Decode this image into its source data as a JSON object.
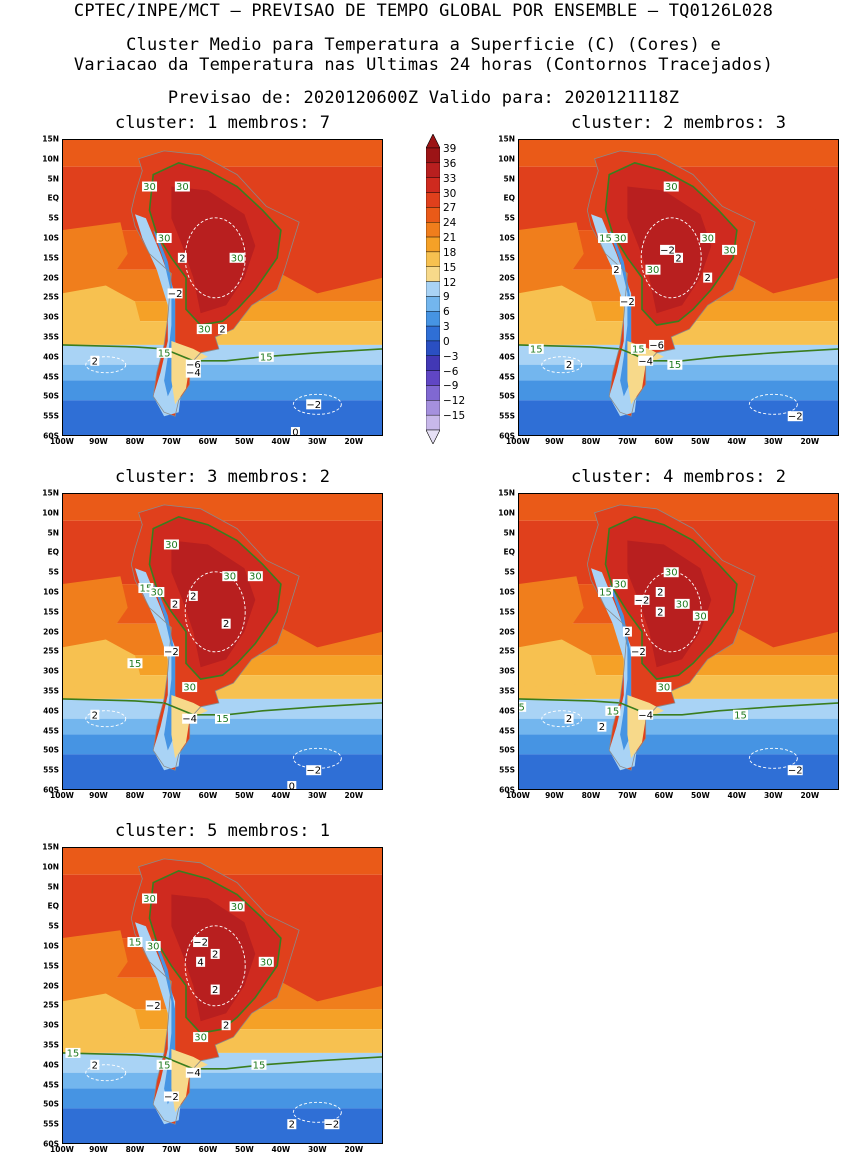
{
  "header": {
    "line1": "CPTEC/INPE/MCT – PREVISAO DE TEMPO GLOBAL POR ENSEMBLE – TQ0126L028",
    "line2": "Cluster Medio para Temperatura a Superficie (C) (Cores) e",
    "line3": "Variacao da Temperatura nas Ultimas 24 horas (Contornos Tracejados)",
    "line4": "Previsao de: 2020120600Z   Valido para: 2020121118Z"
  },
  "axes": {
    "lat_labels": [
      "15N",
      "10N",
      "5N",
      "EQ",
      "5S",
      "10S",
      "15S",
      "20S",
      "25S",
      "30S",
      "35S",
      "40S",
      "45S",
      "50S",
      "55S",
      "60S"
    ],
    "lon_labels": [
      "100W",
      "90W",
      "80W",
      "70W",
      "60W",
      "50W",
      "40W",
      "30W",
      "20W"
    ],
    "lat_range": [
      -60,
      15
    ],
    "lon_range": [
      -100,
      -12
    ]
  },
  "colorbar": {
    "levels": [
      "39",
      "36",
      "33",
      "30",
      "27",
      "24",
      "21",
      "18",
      "15",
      "12",
      "9",
      "6",
      "3",
      "0",
      "-3",
      "-6",
      "-9",
      "-12",
      "-15"
    ],
    "colors": [
      "#9c1416",
      "#b81f1f",
      "#cf2a1f",
      "#e0401c",
      "#ea5a18",
      "#f07e1c",
      "#f5a127",
      "#f7c150",
      "#f7d98a",
      "#a9d3f5",
      "#73b6ee",
      "#4694e3",
      "#2f6fd6",
      "#2a4fc2",
      "#4238b5",
      "#6046c4",
      "#8068d2",
      "#a590de",
      "#c8b8ea"
    ]
  },
  "panels": [
    {
      "title": "cluster: 1   membros: 7",
      "contours": [
        {
          "text": "30",
          "lon": -76,
          "lat": 3
        },
        {
          "text": "30",
          "lon": -67,
          "lat": 3
        },
        {
          "text": "30",
          "lon": -72,
          "lat": -10
        },
        {
          "text": "30",
          "lon": -52,
          "lat": -15
        },
        {
          "text": "30",
          "lon": -61,
          "lat": -33
        },
        {
          "text": "15",
          "lon": -72,
          "lat": -39
        },
        {
          "text": "15",
          "lon": -44,
          "lat": -40
        }
      ],
      "variation": [
        {
          "text": "2",
          "lon": -67,
          "lat": -15
        },
        {
          "text": "-2",
          "lon": -69,
          "lat": -24
        },
        {
          "text": "2",
          "lon": -56,
          "lat": -33
        },
        {
          "text": "2",
          "lon": -91,
          "lat": -41
        },
        {
          "text": "-6",
          "lon": -64,
          "lat": -42
        },
        {
          "text": "-4",
          "lon": -64,
          "lat": -44
        },
        {
          "text": "-2",
          "lon": -31,
          "lat": -52
        },
        {
          "text": "0",
          "lon": -36,
          "lat": -59
        }
      ]
    },
    {
      "title": "cluster: 2   membros: 3",
      "contours": [
        {
          "text": "30",
          "lon": -58,
          "lat": 3
        },
        {
          "text": "15",
          "lon": -76,
          "lat": -10
        },
        {
          "text": "30",
          "lon": -72,
          "lat": -10
        },
        {
          "text": "30",
          "lon": -48,
          "lat": -10
        },
        {
          "text": "30",
          "lon": -42,
          "lat": -13
        },
        {
          "text": "30",
          "lon": -63,
          "lat": -18
        },
        {
          "text": "15",
          "lon": -95,
          "lat": -38
        },
        {
          "text": "15",
          "lon": -67,
          "lat": -38
        },
        {
          "text": "15",
          "lon": -57,
          "lat": -42
        }
      ],
      "variation": [
        {
          "text": "-2",
          "lon": -59,
          "lat": -13
        },
        {
          "text": "2",
          "lon": -56,
          "lat": -15
        },
        {
          "text": "2",
          "lon": -73,
          "lat": -18
        },
        {
          "text": "2",
          "lon": -48,
          "lat": -20
        },
        {
          "text": "-2",
          "lon": -70,
          "lat": -26
        },
        {
          "text": "-6",
          "lon": -62,
          "lat": -37
        },
        {
          "text": "-4",
          "lon": -65,
          "lat": -41
        },
        {
          "text": "2",
          "lon": -86,
          "lat": -42
        },
        {
          "text": "-2",
          "lon": -24,
          "lat": -55
        }
      ]
    },
    {
      "title": "cluster: 3   membros: 2",
      "contours": [
        {
          "text": "30",
          "lon": -70,
          "lat": 2
        },
        {
          "text": "15",
          "lon": -77,
          "lat": -9
        },
        {
          "text": "30",
          "lon": -74,
          "lat": -10
        },
        {
          "text": "30",
          "lon": -54,
          "lat": -6
        },
        {
          "text": "30",
          "lon": -47,
          "lat": -6
        },
        {
          "text": "15",
          "lon": -80,
          "lat": -28
        },
        {
          "text": "30",
          "lon": -65,
          "lat": -34
        },
        {
          "text": "15",
          "lon": -56,
          "lat": -42
        }
      ],
      "variation": [
        {
          "text": "2",
          "lon": -64,
          "lat": -11
        },
        {
          "text": "2",
          "lon": -69,
          "lat": -13
        },
        {
          "text": "2",
          "lon": -55,
          "lat": -18
        },
        {
          "text": "-2",
          "lon": -70,
          "lat": -25
        },
        {
          "text": "-4",
          "lon": -65,
          "lat": -42
        },
        {
          "text": "2",
          "lon": -91,
          "lat": -41
        },
        {
          "text": "-2",
          "lon": -31,
          "lat": -55
        },
        {
          "text": "0",
          "lon": -37,
          "lat": -59
        }
      ]
    },
    {
      "title": "cluster: 4   membros: 2",
      "contours": [
        {
          "text": "30",
          "lon": -58,
          "lat": -5
        },
        {
          "text": "15",
          "lon": -76,
          "lat": -10
        },
        {
          "text": "30",
          "lon": -72,
          "lat": -8
        },
        {
          "text": "30",
          "lon": -55,
          "lat": -13
        },
        {
          "text": "30",
          "lon": -50,
          "lat": -16
        },
        {
          "text": "30",
          "lon": -60,
          "lat": -34
        },
        {
          "text": "5",
          "lon": -99,
          "lat": -39
        },
        {
          "text": "15",
          "lon": -74,
          "lat": -40
        },
        {
          "text": "15",
          "lon": -39,
          "lat": -41
        }
      ],
      "variation": [
        {
          "text": "-2",
          "lon": -66,
          "lat": -12
        },
        {
          "text": "2",
          "lon": -61,
          "lat": -10
        },
        {
          "text": "2",
          "lon": -61,
          "lat": -15
        },
        {
          "text": "2",
          "lon": -70,
          "lat": -20
        },
        {
          "text": "-2",
          "lon": -67,
          "lat": -25
        },
        {
          "text": "-4",
          "lon": -65,
          "lat": -41
        },
        {
          "text": "2",
          "lon": -86,
          "lat": -42
        },
        {
          "text": "2",
          "lon": -77,
          "lat": -44
        },
        {
          "text": "-2",
          "lon": -24,
          "lat": -55
        }
      ]
    },
    {
      "title": "cluster: 5   membros: 1",
      "contours": [
        {
          "text": "30",
          "lon": -76,
          "lat": 2
        },
        {
          "text": "30",
          "lon": -52,
          "lat": 0
        },
        {
          "text": "15",
          "lon": -80,
          "lat": -9
        },
        {
          "text": "30",
          "lon": -75,
          "lat": -10
        },
        {
          "text": "30",
          "lon": -44,
          "lat": -14
        },
        {
          "text": "30",
          "lon": -62,
          "lat": -33
        },
        {
          "text": "15",
          "lon": -97,
          "lat": -37
        },
        {
          "text": "15",
          "lon": -72,
          "lat": -40
        },
        {
          "text": "15",
          "lon": -46,
          "lat": -40
        }
      ],
      "variation": [
        {
          "text": "-2",
          "lon": -62,
          "lat": -9
        },
        {
          "text": "2",
          "lon": -58,
          "lat": -12
        },
        {
          "text": "4",
          "lon": -62,
          "lat": -14
        },
        {
          "text": "2",
          "lon": -58,
          "lat": -21
        },
        {
          "text": "-2",
          "lon": -75,
          "lat": -25
        },
        {
          "text": "2",
          "lon": -55,
          "lat": -30
        },
        {
          "text": "-4",
          "lon": -64,
          "lat": -42
        },
        {
          "text": "2",
          "lon": -91,
          "lat": -40
        },
        {
          "text": "-2",
          "lon": -70,
          "lat": -48
        },
        {
          "text": "2",
          "lon": -37,
          "lat": -55
        },
        {
          "text": "-2",
          "lon": -26,
          "lat": -55
        }
      ]
    }
  ]
}
